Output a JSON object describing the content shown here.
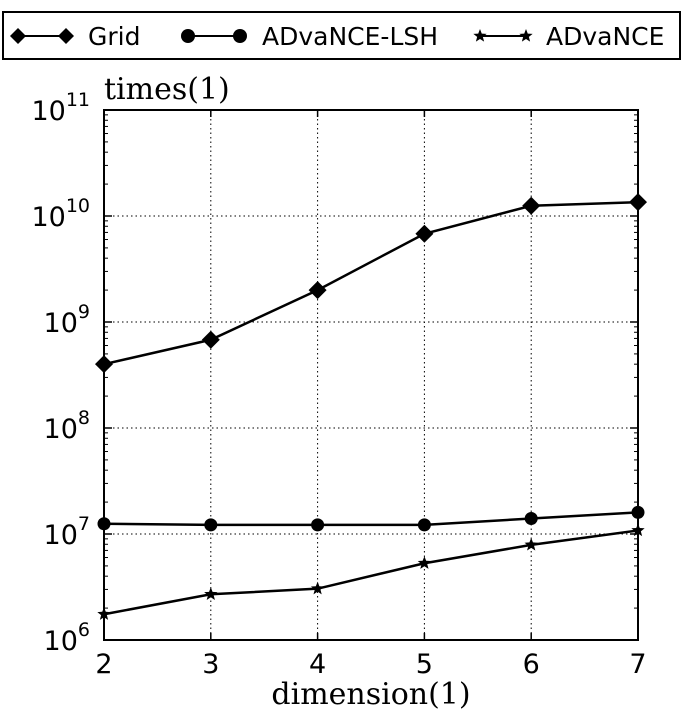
{
  "chart_data": {
    "type": "line",
    "title": "",
    "ylabel": "times(1)",
    "xlabel": "dimension(1)",
    "x": [
      2,
      3,
      4,
      5,
      6,
      7
    ],
    "xlim": [
      2,
      7
    ],
    "ylim": [
      1000000,
      100000000000
    ],
    "yscale": "log",
    "grid": true,
    "legend_position": "top",
    "x_tick_labels": [
      "2",
      "3",
      "4",
      "5",
      "6",
      "7"
    ],
    "y_tick_labels": [
      {
        "base": "10",
        "exp": "6"
      },
      {
        "base": "10",
        "exp": "7"
      },
      {
        "base": "10",
        "exp": "8"
      },
      {
        "base": "10",
        "exp": "9"
      },
      {
        "base": "10",
        "exp": "10"
      },
      {
        "base": "10",
        "exp": "11"
      }
    ],
    "series": [
      {
        "name": "Grid",
        "marker": "diamond",
        "values": [
          400000000,
          680000000,
          2000000000,
          6800000000,
          12500000000,
          13500000000
        ]
      },
      {
        "name": "ADvaNCE-LSH",
        "marker": "circle",
        "values": [
          12500000,
          12200000,
          12200000,
          12200000,
          14000000,
          16000000
        ]
      },
      {
        "name": "ADvaNCE",
        "marker": "star",
        "values": [
          1750000,
          2700000,
          3050000,
          5300000,
          7900000,
          10800000
        ]
      }
    ]
  }
}
